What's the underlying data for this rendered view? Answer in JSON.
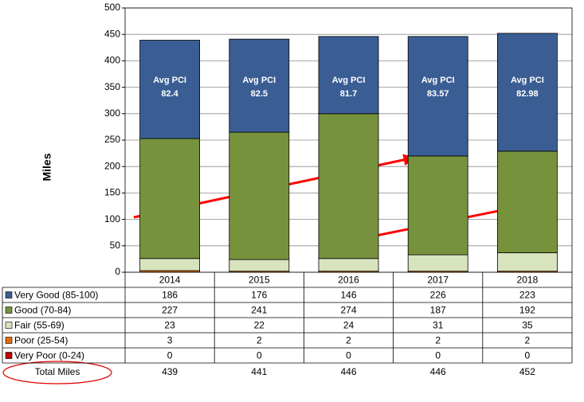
{
  "chart_data": {
    "type": "bar",
    "stacked": true,
    "y_label": "Miles",
    "categories": [
      "2014",
      "2015",
      "2016",
      "2017",
      "2018"
    ],
    "series": [
      {
        "name": "Very Good (85-100)",
        "color": "#3a5e94",
        "values": [
          186,
          176,
          146,
          226,
          223
        ]
      },
      {
        "name": "Good (70-84)",
        "color": "#76923c",
        "values": [
          227,
          241,
          274,
          187,
          192
        ]
      },
      {
        "name": "Fair (55-69)",
        "color": "#d7e4bd",
        "values": [
          23,
          22,
          24,
          31,
          35
        ]
      },
      {
        "name": "Poor (25-54)",
        "color": "#e46c0a",
        "values": [
          3,
          2,
          2,
          2,
          2
        ]
      },
      {
        "name": "Very Poor (0-24)",
        "color": "#c00000",
        "values": [
          0,
          0,
          0,
          0,
          0
        ]
      }
    ],
    "pci_label": "Avg PCI",
    "pci_values": [
      82.4,
      82.5,
      81.7,
      83.57,
      82.98
    ],
    "totals": {
      "label": "Total Miles",
      "values": [
        439,
        441,
        446,
        446,
        452
      ]
    },
    "ylim": [
      0,
      500
    ],
    "yticks": [
      0,
      50,
      100,
      150,
      200,
      250,
      300,
      350,
      400,
      450,
      500
    ],
    "grid": true
  }
}
